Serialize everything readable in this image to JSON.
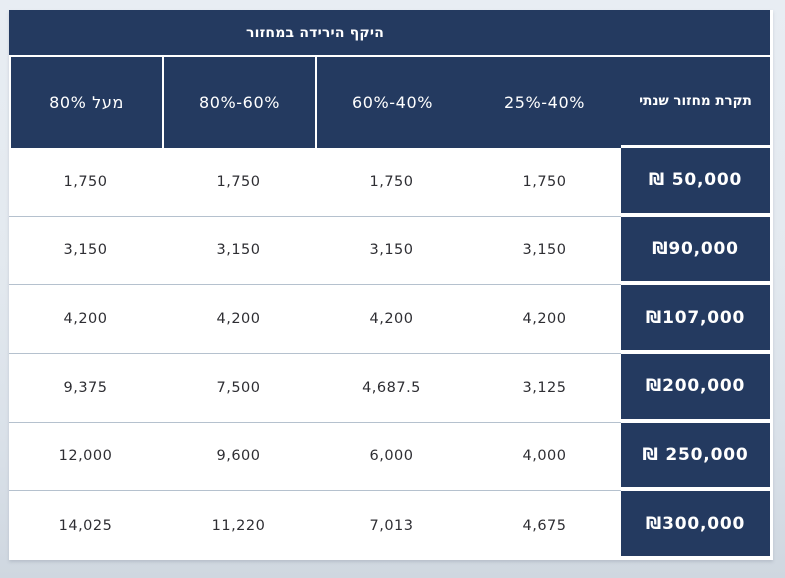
{
  "table": {
    "merged_header": "היקף הירידה במחזור",
    "row_header": "תקרת מחזור שנתי",
    "columns": [
      "25%-40%",
      "60%-40%",
      "80%-60%",
      "מעל 80%"
    ],
    "rows": [
      {
        "label": "₪ 50,000",
        "values": [
          "1,750",
          "1,750",
          "1,750",
          "1,750"
        ]
      },
      {
        "label": "₪90,000",
        "values": [
          "3,150",
          "3,150",
          "3,150",
          "3,150"
        ]
      },
      {
        "label": "₪107,000",
        "values": [
          "4,200",
          "4,200",
          "4,200",
          "4,200"
        ]
      },
      {
        "label": "₪200,000",
        "values": [
          "3,125",
          "4,687.5",
          "7,500",
          "9,375"
        ]
      },
      {
        "label": "₪ 250,000",
        "values": [
          "4,000",
          "6,000",
          "9,600",
          "12,000"
        ]
      },
      {
        "label": "₪300,000",
        "values": [
          "4,675",
          "7,013",
          "11,220",
          "14,025"
        ]
      }
    ],
    "colors": {
      "header_navy": "#243A60",
      "cell_divider": "#B5C1CE",
      "background_top": "#E8EDF3",
      "background_bottom": "#CFD7E0",
      "header_text": "#FFFFFF",
      "value_text": "#2E2E33"
    }
  }
}
